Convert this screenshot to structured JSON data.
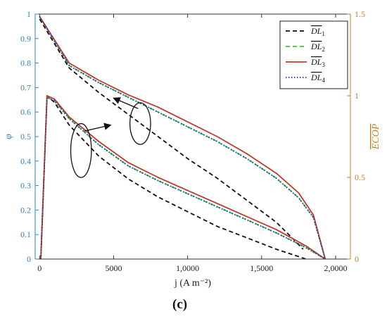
{
  "chart_data": {
    "type": "line",
    "xlabel": "j (A m⁻²)",
    "ylabel_left": "φ",
    "ylabel_right": "ECOP",
    "xlim": [
      -300,
      21000
    ],
    "ylim_left": [
      0,
      1
    ],
    "ylim_right": [
      0,
      1.5
    ],
    "x_ticks": [
      0,
      5000,
      10000,
      15000,
      20000
    ],
    "x_tick_labels": [
      "0",
      "5000",
      "1,0000",
      "1,5000",
      "2,0000"
    ],
    "left_ticks": [
      0,
      0.1,
      0.2,
      0.3,
      0.4,
      0.5,
      0.6,
      0.7,
      0.8,
      0.9,
      1
    ],
    "left_tick_labels": [
      "0",
      "0.1",
      "0.2",
      "0.3",
      "0.4",
      "0.5",
      "0.6",
      "0.7",
      "0.8",
      "0.9",
      "1"
    ],
    "right_ticks": [
      0,
      0.5,
      1,
      1.5
    ],
    "right_tick_labels": [
      "0",
      "0.5",
      "1",
      "1.5"
    ],
    "legend_position": "top-right",
    "colors": {
      "left_axis": "#2e86c1",
      "right_axis": "#c87f2a"
    },
    "series": [
      {
        "name": "DL1",
        "subscript": "1",
        "color": "#111111",
        "style": "dashed",
        "phi": {
          "x": [
            0,
            2000,
            4000,
            6000,
            8000,
            10000,
            12000,
            14000,
            16000,
            17000,
            17800
          ],
          "y": [
            0.98,
            0.78,
            0.68,
            0.59,
            0.5,
            0.41,
            0.33,
            0.24,
            0.15,
            0.09,
            0.04
          ]
        },
        "ecop": {
          "x": [
            80,
            500,
            1000,
            2000,
            4000,
            6000,
            8000,
            10000,
            12000,
            14000,
            16000,
            17000,
            18000
          ],
          "y": [
            0.0,
            1.0,
            0.96,
            0.82,
            0.63,
            0.49,
            0.38,
            0.29,
            0.2,
            0.13,
            0.06,
            0.03,
            0.0
          ]
        }
      },
      {
        "name": "DL2",
        "subscript": "2",
        "color": "#33cc33",
        "style": "dashed",
        "phi": {
          "x": [
            0,
            2000,
            4000,
            6000,
            8000,
            10000,
            12000,
            14000,
            16000,
            17500,
            18500,
            19300
          ],
          "y": [
            0.99,
            0.79,
            0.72,
            0.66,
            0.6,
            0.54,
            0.48,
            0.41,
            0.33,
            0.25,
            0.17,
            0.0
          ]
        },
        "ecop": {
          "x": [
            80,
            500,
            1000,
            2000,
            4000,
            6000,
            8000,
            10000,
            12000,
            14000,
            16000,
            18000,
            19300
          ],
          "y": [
            0.0,
            0.99,
            0.97,
            0.86,
            0.7,
            0.57,
            0.48,
            0.4,
            0.32,
            0.24,
            0.16,
            0.07,
            0.0
          ]
        }
      },
      {
        "name": "DL3",
        "subscript": "3",
        "color": "#c0392b",
        "style": "solid",
        "phi": {
          "x": [
            0,
            2000,
            4000,
            6000,
            8000,
            10000,
            12000,
            14000,
            16000,
            17500,
            18500,
            19300
          ],
          "y": [
            0.99,
            0.8,
            0.73,
            0.67,
            0.62,
            0.56,
            0.5,
            0.43,
            0.35,
            0.27,
            0.18,
            0.0
          ]
        },
        "ecop": {
          "x": [
            80,
            500,
            1000,
            2000,
            4000,
            6000,
            8000,
            10000,
            12000,
            14000,
            16000,
            18000,
            19300
          ],
          "y": [
            0.0,
            1.0,
            0.98,
            0.87,
            0.72,
            0.59,
            0.5,
            0.42,
            0.34,
            0.26,
            0.18,
            0.08,
            0.0
          ]
        }
      },
      {
        "name": "DL4",
        "subscript": "4",
        "color": "#1f3fbf",
        "style": "dotted",
        "phi": {
          "x": [
            0,
            2000,
            4000,
            6000,
            8000,
            10000,
            12000,
            14000,
            16000,
            17500,
            18500,
            19300
          ],
          "y": [
            0.99,
            0.79,
            0.72,
            0.66,
            0.6,
            0.54,
            0.48,
            0.41,
            0.33,
            0.25,
            0.17,
            0.0
          ]
        },
        "ecop": {
          "x": [
            80,
            500,
            1000,
            2000,
            4000,
            6000,
            8000,
            10000,
            12000,
            14000,
            16000,
            18000,
            19300
          ],
          "y": [
            0.0,
            0.99,
            0.97,
            0.86,
            0.7,
            0.57,
            0.48,
            0.4,
            0.32,
            0.24,
            0.16,
            0.07,
            0.0
          ]
        }
      }
    ],
    "annotations": [
      {
        "shape": "ellipse",
        "center": [
          6800,
          0.553
        ],
        "radius": [
          700,
          0.085
        ],
        "arrow_to": [
          5000,
          0.657
        ]
      },
      {
        "shape": "ellipse",
        "center": [
          2800,
          0.443
        ],
        "radius": [
          700,
          0.11
        ],
        "arrow_to": [
          4800,
          0.547
        ]
      }
    ]
  },
  "panel_label": "(c)"
}
